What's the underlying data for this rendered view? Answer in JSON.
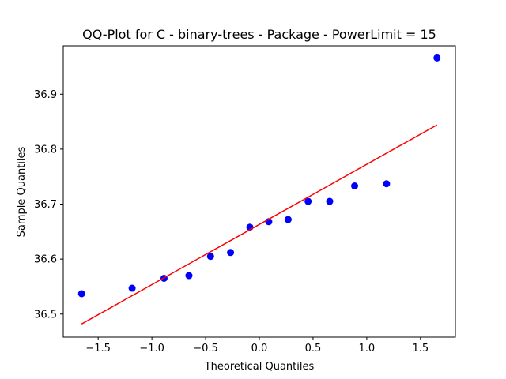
{
  "chart_data": {
    "type": "scatter",
    "title": "QQ-Plot for C - binary-trees - Package - PowerLimit = 15",
    "xlabel": "Theoretical Quantiles",
    "ylabel": "Sample Quantiles",
    "xlim": [
      -1.825,
      1.825
    ],
    "ylim": [
      36.458,
      36.988
    ],
    "xticks": [
      -1.5,
      -1.0,
      -0.5,
      0.0,
      0.5,
      1.0,
      1.5
    ],
    "xtick_labels": [
      "−1.5",
      "−1.0",
      "−0.5",
      "0.0",
      "0.5",
      "1.0",
      "1.5"
    ],
    "yticks": [
      36.5,
      36.6,
      36.7,
      36.8,
      36.9
    ],
    "ytick_labels": [
      "36.5",
      "36.6",
      "36.7",
      "36.8",
      "36.9"
    ],
    "grid": false,
    "series": [
      {
        "kind": "points",
        "color": "#0000ff",
        "x": [
          -1.654,
          -1.184,
          -0.887,
          -0.655,
          -0.454,
          -0.268,
          -0.088,
          0.088,
          0.268,
          0.454,
          0.655,
          0.887,
          1.184,
          1.654
        ],
        "y": [
          36.537,
          36.547,
          36.565,
          36.57,
          36.605,
          36.612,
          36.658,
          36.668,
          36.672,
          36.705,
          36.705,
          36.733,
          36.737,
          36.966
        ]
      },
      {
        "kind": "line",
        "color": "#ff0000",
        "x": [
          -1.654,
          1.654
        ],
        "y": [
          36.482,
          36.844
        ]
      }
    ]
  }
}
